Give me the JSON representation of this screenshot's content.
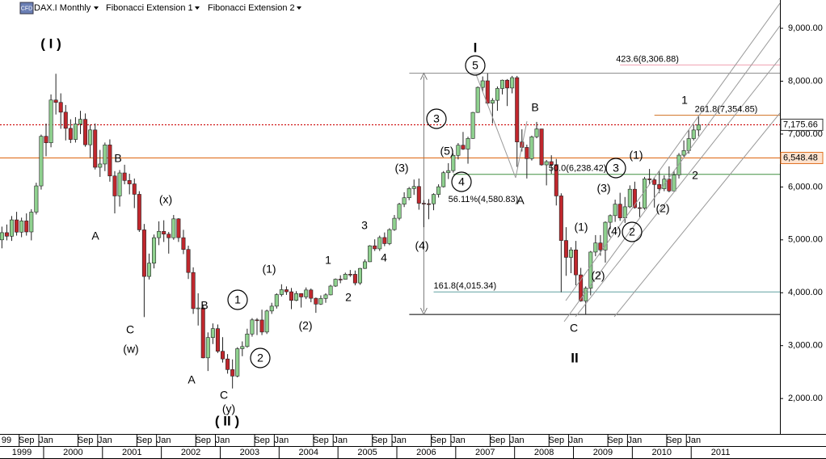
{
  "chart_data": {
    "type": "candlestick",
    "title": "DAX.I Monthly",
    "logo": "CFD",
    "indicators": [
      "Fibonacci Extension 1",
      "Fibonacci Extension 2"
    ],
    "ylim": [
      1330,
      9535
    ],
    "yticks": [
      {
        "value": 2000,
        "label": "2,000.00"
      },
      {
        "value": 3000,
        "label": "3,000.00"
      },
      {
        "value": 4000,
        "label": "4,000.00"
      },
      {
        "value": 5000,
        "label": "5,000.00"
      },
      {
        "value": 6000,
        "label": "6,000.00"
      },
      {
        "value": 7000,
        "label": "7,000.00"
      },
      {
        "value": 8000,
        "label": "8,000.00"
      },
      {
        "value": 9000,
        "label": "9,000.00"
      }
    ],
    "xticks": [
      {
        "value": "1999-04",
        "label": "99"
      },
      {
        "value": "1999-09",
        "label": "Sep"
      },
      {
        "value": "2000-01",
        "label": "Jan"
      },
      {
        "value": "2000-09",
        "label": "Sep"
      },
      {
        "value": "2001-01",
        "label": "Jan"
      },
      {
        "value": "2001-09",
        "label": "Sep"
      },
      {
        "value": "2002-01",
        "label": "Jan"
      },
      {
        "value": "2002-09",
        "label": "Sep"
      },
      {
        "value": "2003-01",
        "label": "Jan"
      },
      {
        "value": "2003-09",
        "label": "Sep"
      },
      {
        "value": "2004-01",
        "label": "Jan"
      },
      {
        "value": "2004-09",
        "label": "Sep"
      },
      {
        "value": "2005-01",
        "label": "Jan"
      },
      {
        "value": "2005-09",
        "label": "Sep"
      },
      {
        "value": "2006-01",
        "label": "Jan"
      },
      {
        "value": "2006-09",
        "label": "Sep"
      },
      {
        "value": "2007-01",
        "label": "Jan"
      },
      {
        "value": "2007-09",
        "label": "Sep"
      },
      {
        "value": "2008-01",
        "label": "Jan"
      },
      {
        "value": "2008-09",
        "label": "Sep"
      },
      {
        "value": "2009-01",
        "label": "Jan"
      },
      {
        "value": "2009-09",
        "label": "Sep"
      },
      {
        "value": "2010-01",
        "label": "Jan"
      },
      {
        "value": "2010-09",
        "label": "Sep"
      },
      {
        "value": "2011-01",
        "label": "Jan"
      }
    ],
    "year_ticks": [
      "1999",
      "2000",
      "2001",
      "2002",
      "2003",
      "2004",
      "2005",
      "2006",
      "2007",
      "2008",
      "2009",
      "2010",
      "2011"
    ],
    "up_color": "#8fd18f",
    "down_color": "#c0272d",
    "x": [
      "1999-04",
      "1999-05",
      "1999-06",
      "1999-07",
      "1999-08",
      "1999-09",
      "1999-10",
      "1999-11",
      "1999-12",
      "2000-01",
      "2000-02",
      "2000-03",
      "2000-04",
      "2000-05",
      "2000-06",
      "2000-07",
      "2000-08",
      "2000-09",
      "2000-10",
      "2000-11",
      "2000-12",
      "2001-01",
      "2001-02",
      "2001-03",
      "2001-04",
      "2001-05",
      "2001-06",
      "2001-07",
      "2001-08",
      "2001-09",
      "2001-10",
      "2001-11",
      "2001-12",
      "2002-01",
      "2002-02",
      "2002-03",
      "2002-04",
      "2002-05",
      "2002-06",
      "2002-07",
      "2002-08",
      "2002-09",
      "2002-10",
      "2002-11",
      "2002-12",
      "2003-01",
      "2003-02",
      "2003-03",
      "2003-04",
      "2003-05",
      "2003-06",
      "2003-07",
      "2003-08",
      "2003-09",
      "2003-10",
      "2003-11",
      "2003-12",
      "2004-01",
      "2004-02",
      "2004-03",
      "2004-04",
      "2004-05",
      "2004-06",
      "2004-07",
      "2004-08",
      "2004-09",
      "2004-10",
      "2004-11",
      "2004-12",
      "2005-01",
      "2005-02",
      "2005-03",
      "2005-04",
      "2005-05",
      "2005-06",
      "2005-07",
      "2005-08",
      "2005-09",
      "2005-10",
      "2005-11",
      "2005-12",
      "2006-01",
      "2006-02",
      "2006-03",
      "2006-04",
      "2006-05",
      "2006-06",
      "2006-07",
      "2006-08",
      "2006-09",
      "2006-10",
      "2006-11",
      "2006-12",
      "2007-01",
      "2007-02",
      "2007-03",
      "2007-04",
      "2007-05",
      "2007-06",
      "2007-07",
      "2007-08",
      "2007-09",
      "2007-10",
      "2007-11",
      "2007-12",
      "2008-01",
      "2008-02",
      "2008-03",
      "2008-04",
      "2008-05",
      "2008-06",
      "2008-07",
      "2008-08",
      "2008-09",
      "2008-10",
      "2008-11",
      "2008-12",
      "2009-01",
      "2009-02",
      "2009-03",
      "2009-04",
      "2009-05",
      "2009-06",
      "2009-07",
      "2009-08",
      "2009-09",
      "2009-10",
      "2009-11",
      "2009-12",
      "2010-01",
      "2010-02",
      "2010-03",
      "2010-04",
      "2010-05",
      "2010-06",
      "2010-07",
      "2010-08",
      "2010-09",
      "2010-10",
      "2010-11",
      "2010-12",
      "2011-01",
      "2011-02"
    ],
    "ohlc": [
      [
        5000,
        5250,
        4840,
        5136
      ],
      [
        5136,
        5290,
        4990,
        5069
      ],
      [
        5069,
        5450,
        4980,
        5378
      ],
      [
        5378,
        5530,
        5080,
        5146
      ],
      [
        5146,
        5420,
        5050,
        5358
      ],
      [
        5358,
        5500,
        5080,
        5150
      ],
      [
        5150,
        5580,
        4990,
        5525
      ],
      [
        5525,
        6080,
        5480,
        6020
      ],
      [
        6020,
        6990,
        5950,
        6958
      ],
      [
        6958,
        7200,
        6580,
        6835
      ],
      [
        6835,
        7750,
        6750,
        7644
      ],
      [
        7644,
        8140,
        7370,
        7599
      ],
      [
        7599,
        7770,
        7100,
        7414
      ],
      [
        7414,
        7550,
        6880,
        7109
      ],
      [
        7109,
        7280,
        6830,
        6898
      ],
      [
        6898,
        7320,
        6840,
        7190
      ],
      [
        7190,
        7440,
        7000,
        7279
      ],
      [
        7279,
        7390,
        6760,
        6798
      ],
      [
        6798,
        7180,
        6550,
        7078
      ],
      [
        7078,
        7200,
        6330,
        6372
      ],
      [
        6372,
        6700,
        6190,
        6434
      ],
      [
        6434,
        6840,
        6300,
        6795
      ],
      [
        6795,
        6900,
        6100,
        6208
      ],
      [
        6208,
        6300,
        5500,
        5830
      ],
      [
        5830,
        6320,
        5630,
        6265
      ],
      [
        6265,
        6420,
        6050,
        6123
      ],
      [
        6123,
        6250,
        5860,
        6058
      ],
      [
        6058,
        6160,
        5600,
        5861
      ],
      [
        5861,
        5920,
        5150,
        5189
      ],
      [
        5189,
        5300,
        3540,
        4308
      ],
      [
        4308,
        4740,
        4250,
        4559
      ],
      [
        4559,
        5100,
        4460,
        5041
      ],
      [
        5041,
        5350,
        4900,
        5160
      ],
      [
        5160,
        5370,
        4960,
        5108
      ],
      [
        5108,
        5150,
        4740,
        5039
      ],
      [
        5039,
        5470,
        5000,
        5397
      ],
      [
        5397,
        5410,
        4960,
        5041
      ],
      [
        5041,
        5190,
        4730,
        4818
      ],
      [
        4818,
        4890,
        4260,
        4383
      ],
      [
        4383,
        4480,
        3600,
        3700
      ],
      [
        3700,
        3990,
        3380,
        3712
      ],
      [
        3712,
        3760,
        2760,
        2769
      ],
      [
        2769,
        3250,
        2520,
        3153
      ],
      [
        3153,
        3420,
        3030,
        3321
      ],
      [
        3321,
        3400,
        2860,
        2893
      ],
      [
        2893,
        3160,
        2680,
        2748
      ],
      [
        2748,
        2840,
        2470,
        2547
      ],
      [
        2547,
        2740,
        2190,
        2424
      ],
      [
        2424,
        2970,
        2400,
        2942
      ],
      [
        2942,
        3080,
        2800,
        2983
      ],
      [
        2983,
        3320,
        2960,
        3220
      ],
      [
        3220,
        3520,
        3170,
        3487
      ],
      [
        3487,
        3520,
        3200,
        3485
      ],
      [
        3485,
        3680,
        3200,
        3257
      ],
      [
        3257,
        3680,
        3220,
        3655
      ],
      [
        3655,
        3810,
        3600,
        3746
      ],
      [
        3746,
        3990,
        3700,
        3965
      ],
      [
        3965,
        4160,
        3930,
        4058
      ],
      [
        4058,
        4120,
        3960,
        4018
      ],
      [
        4018,
        4090,
        3690,
        3856
      ],
      [
        3856,
        4030,
        3840,
        3985
      ],
      [
        3985,
        3990,
        3720,
        3921
      ],
      [
        3921,
        4100,
        3880,
        4052
      ],
      [
        4052,
        4080,
        3820,
        3895
      ],
      [
        3895,
        3910,
        3620,
        3785
      ],
      [
        3785,
        3950,
        3770,
        3892
      ],
      [
        3892,
        3990,
        3810,
        3960
      ],
      [
        3960,
        4150,
        3950,
        4126
      ],
      [
        4126,
        4270,
        4110,
        4256
      ],
      [
        4256,
        4330,
        4180,
        4254
      ],
      [
        4254,
        4380,
        4250,
        4350
      ],
      [
        4350,
        4430,
        4300,
        4349
      ],
      [
        4349,
        4420,
        4140,
        4185
      ],
      [
        4185,
        4470,
        4150,
        4460
      ],
      [
        4460,
        4630,
        4450,
        4586
      ],
      [
        4586,
        4900,
        4580,
        4887
      ],
      [
        4887,
        5010,
        4790,
        4830
      ],
      [
        4830,
        5080,
        4790,
        5044
      ],
      [
        5044,
        5140,
        4880,
        4929
      ],
      [
        4929,
        5220,
        4900,
        5193
      ],
      [
        5193,
        5470,
        5170,
        5408
      ],
      [
        5408,
        5700,
        5370,
        5674
      ],
      [
        5674,
        5900,
        5620,
        5796
      ],
      [
        5796,
        6000,
        5750,
        5970
      ],
      [
        5970,
        6140,
        5850,
        6009
      ],
      [
        6009,
        6160,
        5570,
        5692
      ],
      [
        5692,
        5750,
        5240,
        5683
      ],
      [
        5683,
        5770,
        5390,
        5682
      ],
      [
        5682,
        5880,
        5560,
        5859
      ],
      [
        5859,
        6050,
        5800,
        6004
      ],
      [
        6004,
        6300,
        5990,
        6269
      ],
      [
        6269,
        6450,
        6150,
        6309
      ],
      [
        6309,
        6630,
        6270,
        6597
      ],
      [
        6597,
        6830,
        6520,
        6789
      ],
      [
        6789,
        7040,
        6700,
        6716
      ],
      [
        6716,
        6950,
        6440,
        6917
      ],
      [
        6917,
        7420,
        6910,
        7409
      ],
      [
        7409,
        7900,
        7400,
        7883
      ],
      [
        7883,
        8090,
        7800,
        8007
      ],
      [
        8007,
        8150,
        7560,
        7584
      ],
      [
        7584,
        7680,
        7200,
        7638
      ],
      [
        7638,
        7900,
        7440,
        7862
      ],
      [
        7862,
        8030,
        7750,
        8019
      ],
      [
        8019,
        8040,
        7530,
        7871
      ],
      [
        7871,
        8100,
        7770,
        8067
      ],
      [
        8067,
        8100,
        6380,
        6851
      ],
      [
        6851,
        7090,
        6670,
        6748
      ],
      [
        6748,
        6800,
        6160,
        6535
      ],
      [
        6535,
        6970,
        6500,
        6949
      ],
      [
        6949,
        7230,
        6920,
        7097
      ],
      [
        7097,
        7100,
        6400,
        6418
      ],
      [
        6418,
        6510,
        6030,
        6479
      ],
      [
        6479,
        6600,
        6250,
        6422
      ],
      [
        6422,
        6530,
        5650,
        5831
      ],
      [
        5831,
        5880,
        4010,
        4988
      ],
      [
        4988,
        5240,
        4320,
        4669
      ],
      [
        4669,
        4860,
        4370,
        4810
      ],
      [
        4810,
        4980,
        4140,
        4338
      ],
      [
        4338,
        4470,
        3830,
        3844
      ],
      [
        3844,
        4120,
        3590,
        4085
      ],
      [
        4085,
        4790,
        3950,
        4769
      ],
      [
        4769,
        5090,
        4690,
        4941
      ],
      [
        4941,
        5090,
        4700,
        4809
      ],
      [
        4809,
        5350,
        4570,
        5332
      ],
      [
        5332,
        5480,
        5200,
        5458
      ],
      [
        5458,
        5760,
        5340,
        5675
      ],
      [
        5675,
        5890,
        5360,
        5415
      ],
      [
        5415,
        5810,
        5320,
        5625
      ],
      [
        5625,
        6030,
        5600,
        5957
      ],
      [
        5957,
        6100,
        5590,
        5608
      ],
      [
        5608,
        5720,
        5430,
        5598
      ],
      [
        5598,
        6190,
        5570,
        6154
      ],
      [
        6154,
        6340,
        6050,
        6136
      ],
      [
        6136,
        6170,
        5610,
        6046
      ],
      [
        6046,
        6310,
        5880,
        5966
      ],
      [
        5966,
        6220,
        5920,
        6148
      ],
      [
        6148,
        6390,
        5900,
        5925
      ],
      [
        5925,
        6300,
        5920,
        6229
      ],
      [
        6229,
        6640,
        6160,
        6601
      ],
      [
        6601,
        6880,
        6570,
        6688
      ],
      [
        6688,
        7080,
        6630,
        6914
      ],
      [
        6914,
        7180,
        6880,
        7077
      ],
      [
        7077,
        7350,
        6960,
        7176
      ]
    ],
    "price_lines": [
      {
        "value": 7175.66,
        "label": "7,175.66",
        "color": "#cc0000",
        "style": "dotted"
      },
      {
        "value": 6548.48,
        "label": "6,548.48",
        "color": "#e07020",
        "style": "solid"
      }
    ],
    "extension_range": {
      "from": "2006-06",
      "values": [
        8150,
        3590
      ],
      "colors": [
        "#888888",
        "#000000"
      ]
    },
    "levels": [
      {
        "label": "423.6(8,306.88)",
        "value": 8306.88,
        "color": "#f0a0b0",
        "from": "2009-10"
      },
      {
        "label": "261.8(7,354.85)",
        "value": 7354.85,
        "color": "#d07020",
        "from": "2010-05"
      },
      {
        "label": "50.0(6,238.42)",
        "value": 6238.42,
        "color": "#409040",
        "from": "2006-12"
      },
      {
        "label": "161.8(4,015.34)",
        "value": 4015.34,
        "color": "#60a0a0",
        "from": "2006-08"
      }
    ],
    "annotations": [
      "( I )",
      "B",
      "A",
      "(x)",
      "C",
      "(w)",
      "B",
      "A",
      "C",
      "(y)",
      "( II )",
      "1",
      "2",
      "(1)",
      "(2)",
      "1",
      "2",
      "3",
      "4",
      "(3)",
      "(4)",
      "3",
      "(5)",
      "4",
      "56.11%(4,580.83)",
      "I",
      "5",
      "B",
      "A",
      "C",
      "II",
      "(1)",
      "(2)",
      "(3)",
      "(4)",
      "2",
      "3",
      "(1)",
      "(2)",
      "1",
      "2"
    ]
  }
}
